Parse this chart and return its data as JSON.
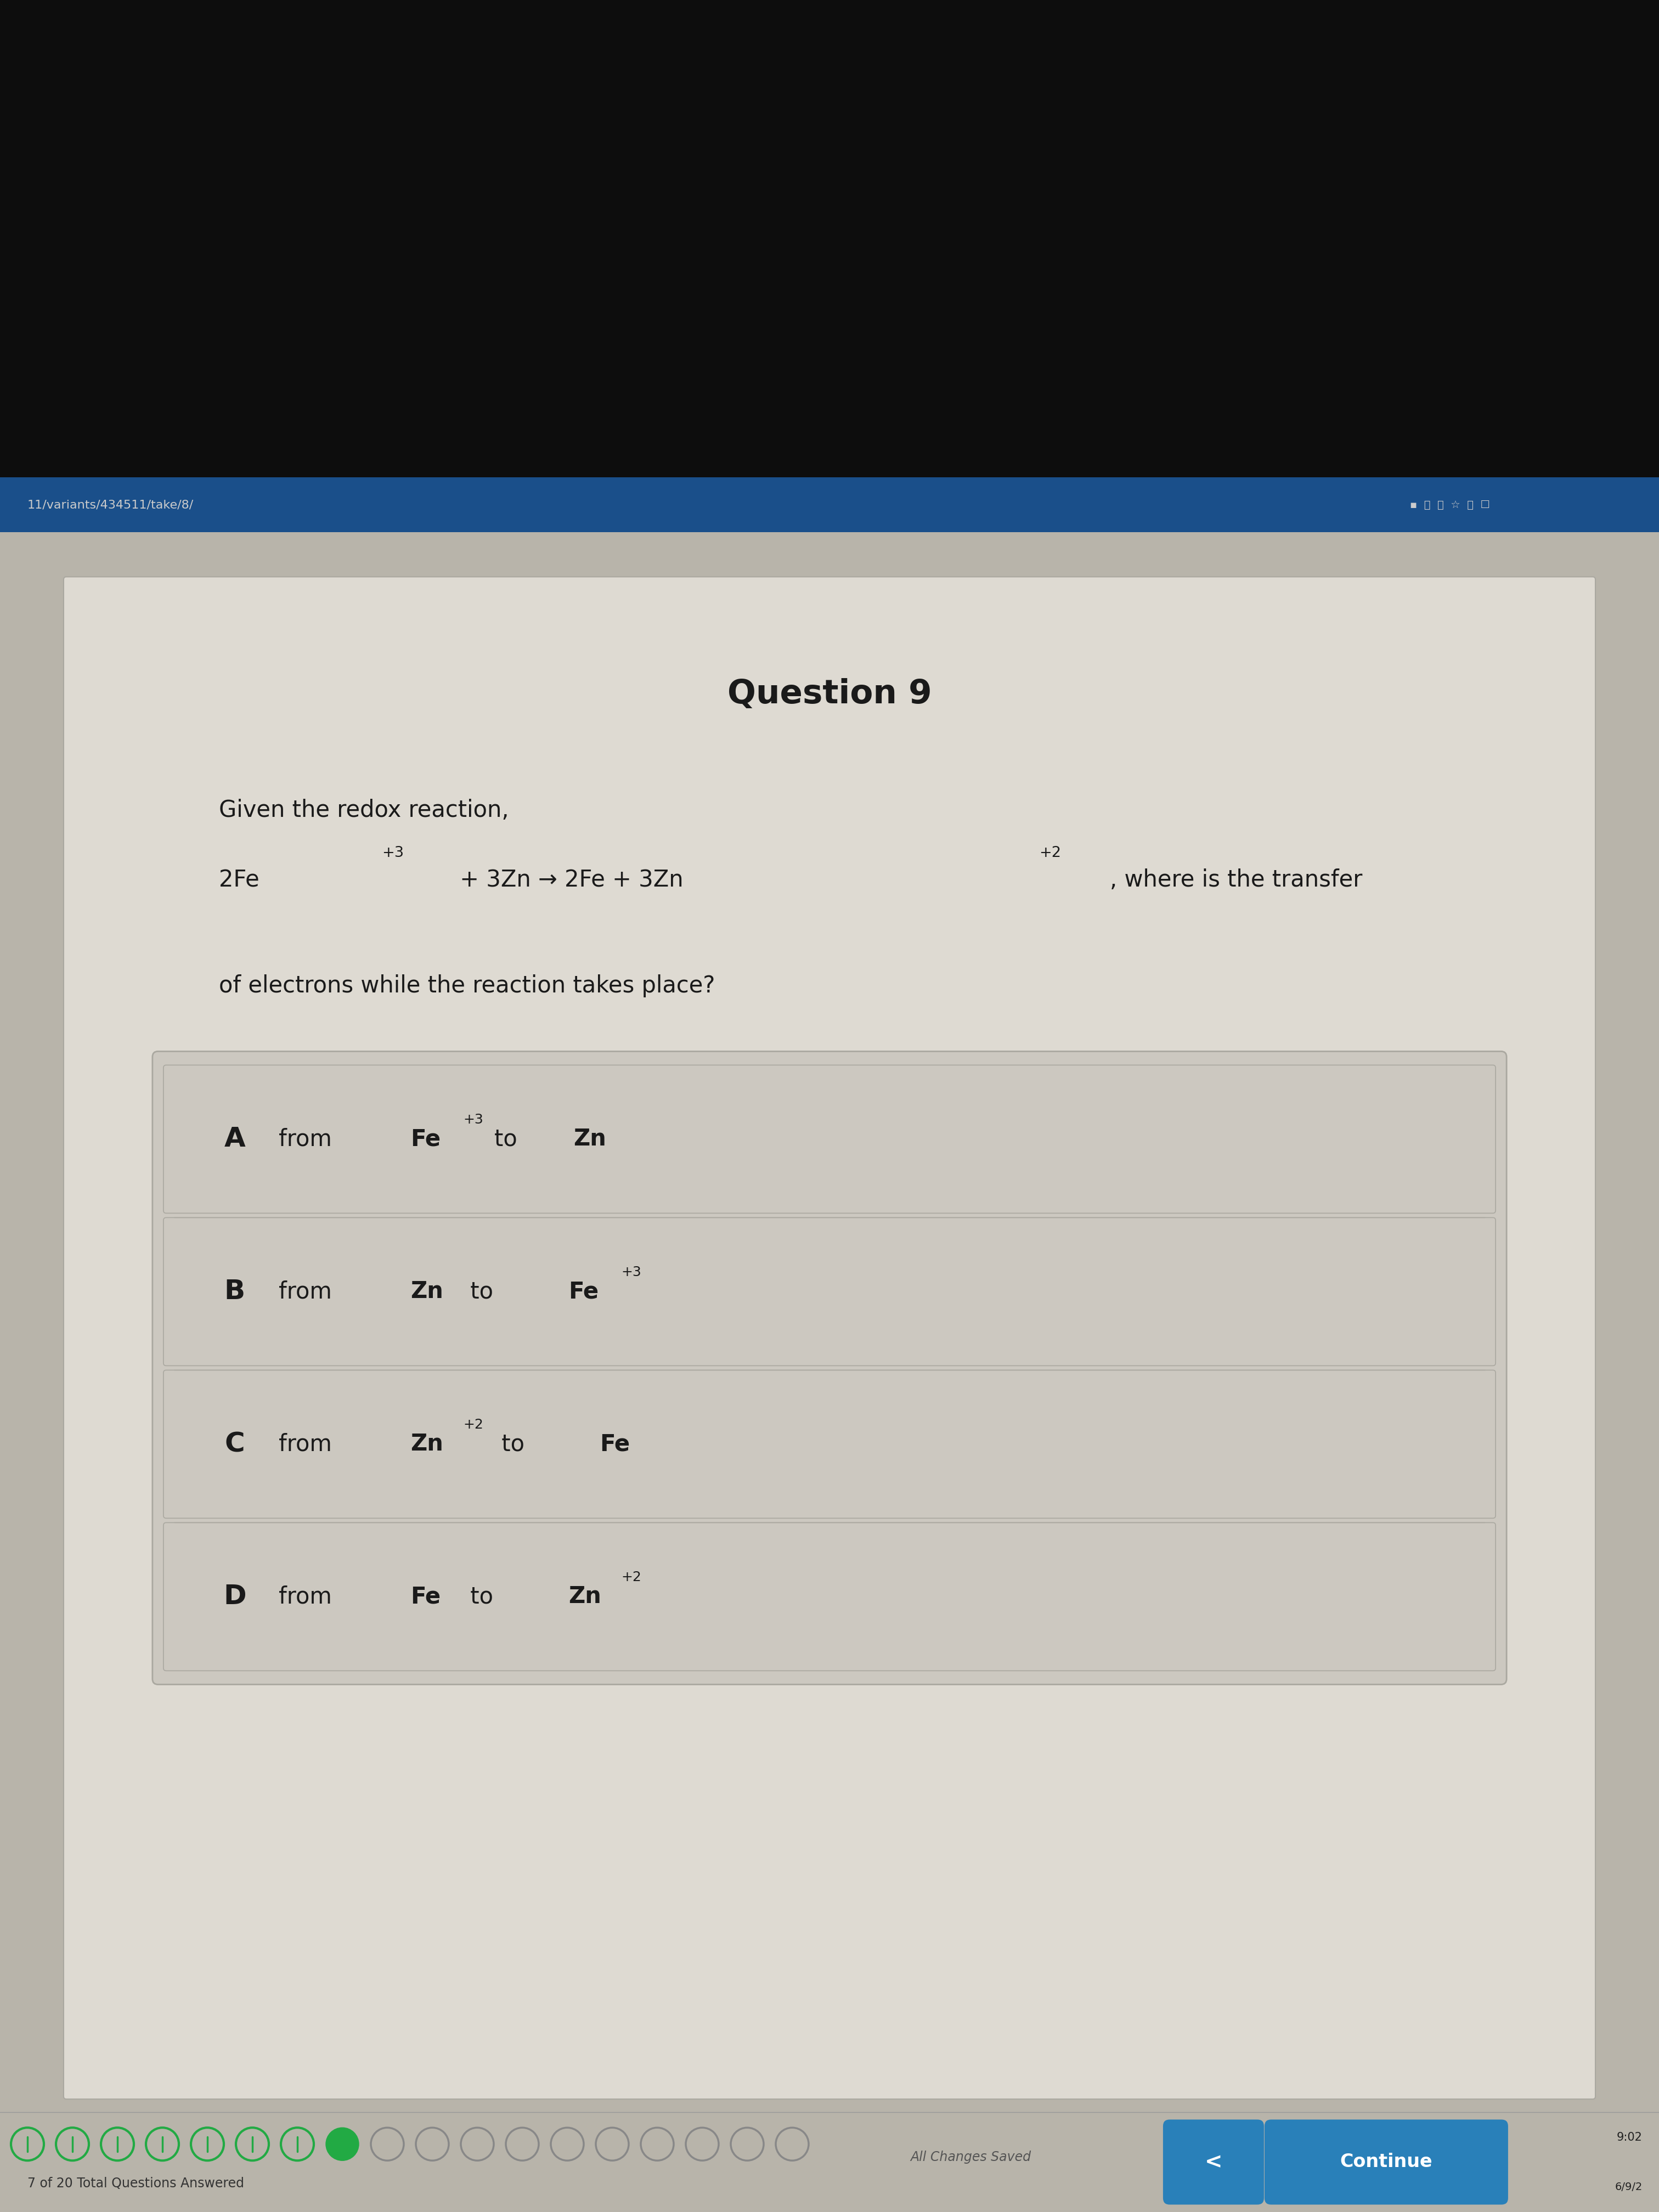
{
  "title": "Question 9",
  "url_bar": "11/variants/434511/take/8/",
  "question_text_line1": "Given the redox reaction,",
  "question_text_line3": "of electrons while the reaction takes place?",
  "options_data": [
    {
      "letter": "A",
      "parts": [
        [
          "from ",
          false,
          false
        ],
        [
          "Fe",
          true,
          false
        ],
        [
          "+3",
          false,
          true
        ],
        [
          "to ",
          false,
          false
        ],
        [
          "Zn",
          true,
          false
        ]
      ]
    },
    {
      "letter": "B",
      "parts": [
        [
          "from ",
          false,
          false
        ],
        [
          "Zn",
          true,
          false
        ],
        [
          " to ",
          false,
          false
        ],
        [
          "Fe",
          true,
          false
        ],
        [
          "+3",
          false,
          true
        ]
      ]
    },
    {
      "letter": "C",
      "parts": [
        [
          "from ",
          false,
          false
        ],
        [
          "Zn",
          true,
          false
        ],
        [
          "+2",
          false,
          true
        ],
        [
          " to ",
          false,
          false
        ],
        [
          "Fe",
          true,
          false
        ]
      ]
    },
    {
      "letter": "D",
      "parts": [
        [
          "from ",
          false,
          false
        ],
        [
          "Fe",
          true,
          false
        ],
        [
          " to ",
          false,
          false
        ],
        [
          "Zn",
          true,
          false
        ],
        [
          "+2",
          false,
          true
        ]
      ]
    }
  ],
  "progress_text": "7 of 20 Total Questions Answered",
  "all_changes_saved": "All Changes Saved",
  "continue_btn": "Continue",
  "bg_top_color": "#111111",
  "bg_screen_color": "#b0b0b0",
  "bg_content_color": "#d8d4cc",
  "bg_option_color": "#c8c4bc",
  "blue_bar_color": "#1a4f8a",
  "btn_color": "#2980b9",
  "text_color": "#1a1a1a",
  "green_dot_color": "#22aa44",
  "empty_dot_color": "#888888",
  "url_text_color": "#cccccc",
  "option_border_color": "#aaaaaa",
  "time_text": "9:02",
  "date_text": "6/9/2"
}
